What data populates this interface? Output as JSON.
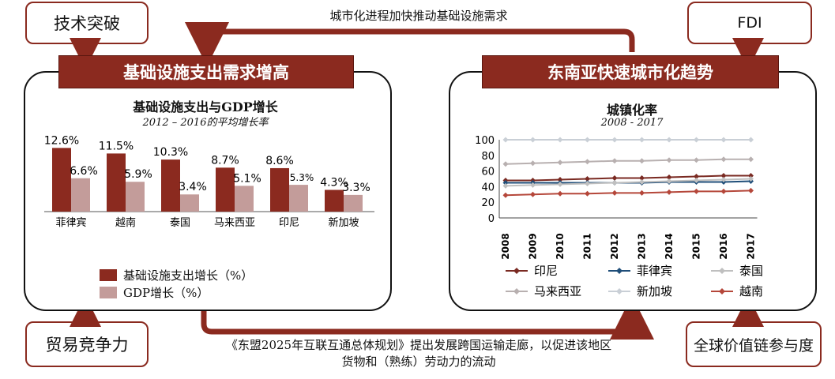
{
  "corner_boxes": {
    "tech": "技术突破",
    "fdi": "FDI",
    "trade": "贸易竞争力",
    "gvc": "全球价值链参与度"
  },
  "arrow_notes": {
    "top": "城市化进程加快推动基础设施需求",
    "bottom_line1": "《东盟2025年互联互通总体规划》提出发展跨国运输走廊，以促进该地区",
    "bottom_line2": "货物和（熟练）劳动力的流动"
  },
  "left_panel": {
    "banner": "基础设施支出需求增高",
    "title": "基础设施支出与GDP增长",
    "subtitle": "2012 – 2016的平均增长率",
    "legend": {
      "infra": "基础设施支出增长（%）",
      "gdp": "GDP增长（%）"
    }
  },
  "right_panel": {
    "banner": "东南亚快速城市化趋势",
    "title": "城镇化率",
    "subtitle": "2008 - 2017"
  },
  "colors": {
    "dark_red": "#8b2a1f",
    "pink": "#c39c9a",
    "indonesia": "#7a2a22",
    "philippines": "#1f4e79",
    "thailand": "#bfbfbf",
    "malaysia": "#b8b0b0",
    "singapore": "#c9cfd6",
    "vietnam": "#b5473a"
  },
  "chart_data": [
    {
      "type": "bar",
      "title": "基础设施支出与GDP增长",
      "subtitle": "2012 – 2016的平均增长率",
      "categories": [
        "菲律宾",
        "越南",
        "泰国",
        "马来西亚",
        "印尼",
        "新加坡"
      ],
      "series": [
        {
          "name": "基础设施支出增长（%）",
          "values": [
            12.6,
            11.5,
            10.3,
            8.7,
            8.6,
            4.3
          ],
          "labels": [
            "12.6%",
            "11.5%",
            "10.3%",
            "8.7%",
            "8.6%",
            "4.3%"
          ]
        },
        {
          "name": "GDP增长（%）",
          "values": [
            6.6,
            5.9,
            3.4,
            5.1,
            5.3,
            3.3
          ],
          "labels": [
            "6.6%",
            "5.9%",
            "3.4%",
            "5.1%",
            "5.3%",
            "3.3%"
          ]
        }
      ],
      "legend_position": "bottom-left"
    },
    {
      "type": "line",
      "title": "城镇化率",
      "subtitle": "2008 - 2017",
      "x": [
        "2008",
        "2009",
        "2010",
        "2011",
        "2012",
        "2013",
        "2014",
        "2015",
        "2016",
        "2017"
      ],
      "ylim": [
        0,
        100
      ],
      "yticks": [
        0,
        20,
        40,
        60,
        80,
        100
      ],
      "grid": false,
      "legend_position": "bottom",
      "series": [
        {
          "name": "印尼",
          "marker": "diamond",
          "values": [
            48,
            48,
            49,
            50,
            51,
            51,
            52,
            53,
            54,
            54
          ]
        },
        {
          "name": "菲律宾",
          "marker": "diamond",
          "values": [
            45,
            45,
            45,
            45,
            45,
            45,
            46,
            46,
            46,
            47
          ]
        },
        {
          "name": "泰国",
          "marker": "diamond",
          "values": [
            41,
            42,
            43,
            44,
            45,
            46,
            47,
            48,
            49,
            50
          ]
        },
        {
          "name": "马来西亚",
          "marker": "diamond",
          "values": [
            69,
            70,
            71,
            72,
            73,
            73,
            74,
            74,
            75,
            75
          ]
        },
        {
          "name": "新加坡",
          "marker": "diamond",
          "values": [
            100,
            100,
            100,
            100,
            100,
            100,
            100,
            100,
            100,
            100
          ]
        },
        {
          "name": "越南",
          "marker": "diamond",
          "values": [
            29,
            30,
            31,
            31,
            32,
            32,
            33,
            34,
            34,
            35
          ]
        }
      ]
    }
  ]
}
